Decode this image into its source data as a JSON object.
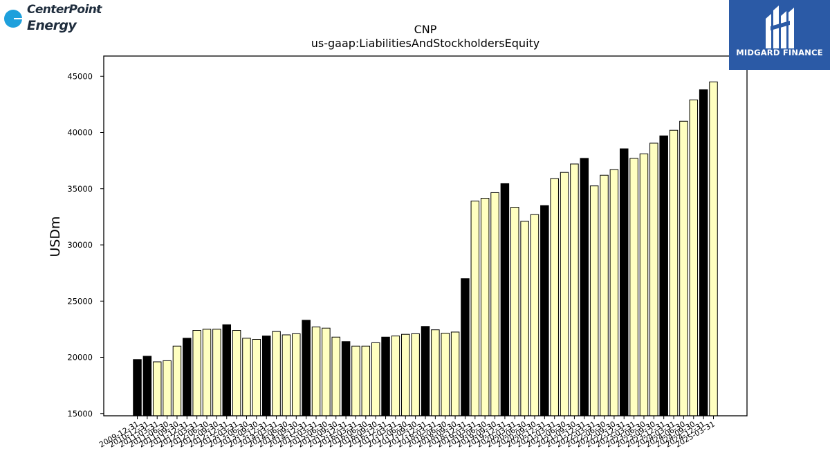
{
  "logos": {
    "left": {
      "line1": "CenterPoint",
      "line2": "Energy",
      "mark": "®"
    },
    "right": {
      "text": "MIDGARD FINANCE",
      "icon": "midgard-finance-icon"
    }
  },
  "colors": {
    "bar_default": "#ffffc0",
    "bar_highlight": "#000000",
    "bar_edge": "#000000",
    "logo_left_dot": "#1ea0dc",
    "logo_right_bg": "#2b5aa6"
  },
  "chart_data": {
    "type": "bar",
    "title": "CNP",
    "subtitle": "us-gaap:LiabilitiesAndStockholdersEquity",
    "xlabel": "",
    "ylabel": "USDm",
    "ylim": [
      14800,
      46800
    ],
    "yticks": [
      15000,
      20000,
      25000,
      30000,
      35000,
      40000,
      45000
    ],
    "grid": false,
    "legend": "none",
    "categories": [
      "2009-12-31",
      "2010-12-31",
      "2011-03-31",
      "2011-06-30",
      "2011-09-30",
      "2011-12-31",
      "2012-03-31",
      "2012-06-30",
      "2012-09-30",
      "2012-12-31",
      "2013-03-31",
      "2013-06-30",
      "2013-09-30",
      "2013-12-31",
      "2014-03-31",
      "2014-06-30",
      "2014-09-30",
      "2014-12-31",
      "2015-03-31",
      "2015-06-30",
      "2015-09-30",
      "2015-12-31",
      "2016-03-31",
      "2016-06-30",
      "2016-09-30",
      "2016-12-31",
      "2017-03-31",
      "2017-06-30",
      "2017-09-30",
      "2017-12-31",
      "2018-03-31",
      "2018-06-30",
      "2018-09-30",
      "2018-12-31",
      "2019-03-31",
      "2019-06-30",
      "2019-09-30",
      "2019-12-31",
      "2020-03-31",
      "2020-06-30",
      "2020-09-30",
      "2020-12-31",
      "2021-03-31",
      "2021-06-30",
      "2021-09-30",
      "2021-12-31",
      "2022-03-31",
      "2022-06-30",
      "2022-09-30",
      "2022-12-31",
      "2023-03-31",
      "2023-06-30",
      "2023-09-30",
      "2023-12-31",
      "2024-03-31",
      "2024-06-30",
      "2024-09-30",
      "2024-12-31",
      "2025-03-31"
    ],
    "values": [
      19800,
      20100,
      19600,
      19700,
      21000,
      21700,
      22400,
      22500,
      22500,
      22900,
      22400,
      21700,
      21600,
      21900,
      22300,
      22000,
      22100,
      23300,
      22700,
      22600,
      21800,
      21400,
      21000,
      21000,
      21300,
      21800,
      21900,
      22050,
      22100,
      22750,
      22450,
      22150,
      22250,
      27000,
      33900,
      34150,
      34650,
      35450,
      33350,
      32100,
      32700,
      33500,
      35900,
      36450,
      37200,
      37700,
      35250,
      36200,
      36700,
      38550,
      37700,
      38100,
      39050,
      39700,
      40200,
      41000,
      42900,
      43800,
      44500
    ],
    "highlight": [
      true,
      true,
      false,
      false,
      false,
      true,
      false,
      false,
      false,
      true,
      false,
      false,
      false,
      true,
      false,
      false,
      false,
      true,
      false,
      false,
      false,
      true,
      false,
      false,
      false,
      true,
      false,
      false,
      false,
      true,
      false,
      false,
      false,
      true,
      false,
      false,
      false,
      true,
      false,
      false,
      false,
      true,
      false,
      false,
      false,
      true,
      false,
      false,
      false,
      true,
      false,
      false,
      false,
      true,
      false,
      false,
      false,
      true,
      false
    ]
  }
}
